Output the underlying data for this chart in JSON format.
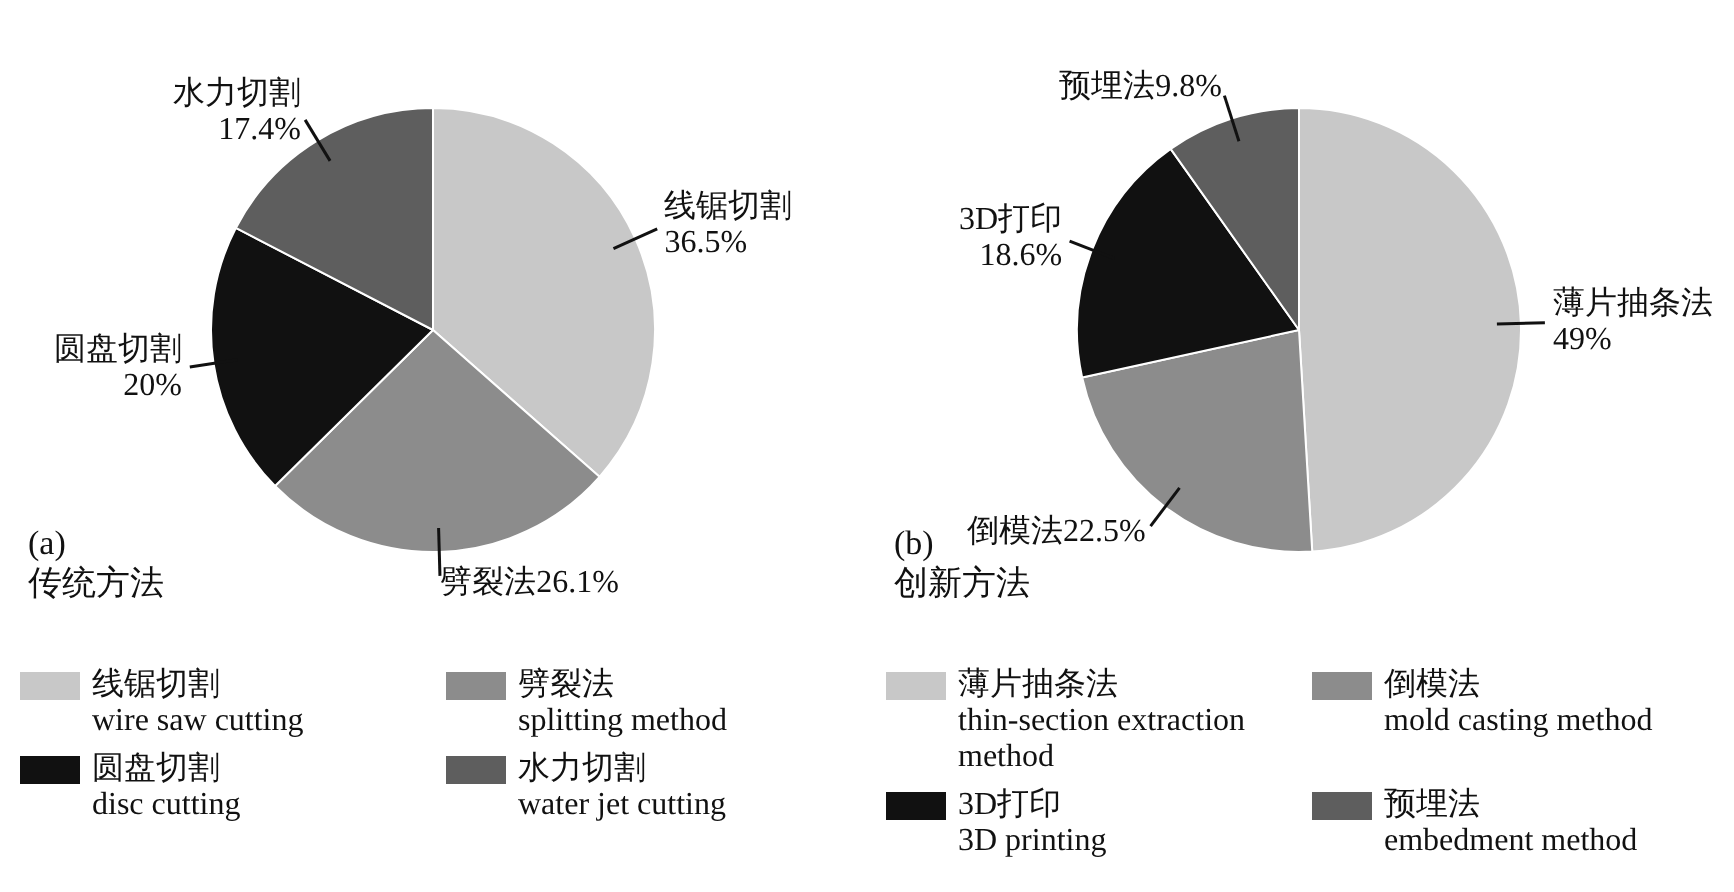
{
  "chart_data": [
    {
      "type": "pie",
      "title": "(a)",
      "subtitle": "传统方法",
      "categories": [
        "线锯切割\nwire saw cutting",
        "劈裂法\nsplitting method",
        "圆盘切割\ndisc cutting",
        "水力切割\nwater jet cutting"
      ],
      "values": [
        36.5,
        26.1,
        20,
        17.4
      ],
      "value_labels": [
        "线锯切割\n36.5%",
        "劈裂法26.1%",
        "圆盘切割\n20%",
        "水力切割\n17.4%"
      ],
      "colors": [
        "#c8c8c8",
        "#8c8c8c",
        "#111111",
        "#5e5e5e"
      ],
      "legend": "bottom"
    },
    {
      "type": "pie",
      "title": "(b)",
      "subtitle": "创新方法",
      "categories": [
        "薄片抽条法\nthin-section extraction method",
        "倒模法\nmold casting method",
        "3D打印\n3D printing",
        "预埋法\nembedment method"
      ],
      "values": [
        49,
        22.5,
        18.6,
        9.8
      ],
      "value_labels": [
        "薄片抽条法\n49%",
        "倒模法22.5%",
        "3D打印\n18.6%",
        "预埋法9.8%"
      ],
      "colors": [
        "#c8c8c8",
        "#8c8c8c",
        "#111111",
        "#5e5e5e"
      ],
      "legend": "bottom"
    }
  ]
}
